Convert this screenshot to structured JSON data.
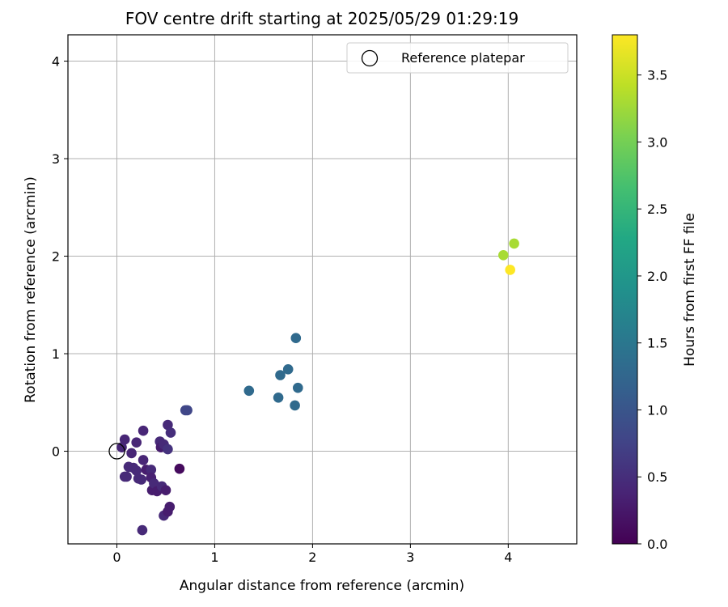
{
  "chart_data": {
    "type": "scatter",
    "title": "FOV centre drift starting at 2025/05/29 01:29:19",
    "xlabel": "Angular distance from reference (arcmin)",
    "ylabel": "Rotation from reference (arcmin)",
    "xlim": [
      -0.5,
      4.7
    ],
    "ylim": [
      -0.95,
      4.27
    ],
    "xticks": [
      0,
      1,
      2,
      3,
      4
    ],
    "yticks": [
      0,
      1,
      2,
      3,
      4
    ],
    "grid": true,
    "legend": {
      "placement": "top-right",
      "entries": [
        "Reference platepar"
      ]
    },
    "reference_point": {
      "x": 0,
      "y": 0,
      "label": "Reference platepar"
    },
    "colorbar": {
      "label": "Hours from first FF file",
      "colormap": "viridis",
      "range": [
        0.0,
        3.8
      ],
      "ticks": [
        0.0,
        0.5,
        1.0,
        1.5,
        2.0,
        2.5,
        3.0,
        3.5
      ]
    },
    "series": [
      {
        "points": [
          {
            "x": 0.05,
            "y": 0.04,
            "c": 0.4
          },
          {
            "x": 0.08,
            "y": 0.12,
            "c": 0.4
          },
          {
            "x": 0.15,
            "y": -0.02,
            "c": 0.4
          },
          {
            "x": 0.2,
            "y": 0.09,
            "c": 0.4
          },
          {
            "x": 0.27,
            "y": 0.21,
            "c": 0.4
          },
          {
            "x": 0.27,
            "y": -0.09,
            "c": 0.4
          },
          {
            "x": 0.08,
            "y": -0.26,
            "c": 0.45
          },
          {
            "x": 0.1,
            "y": -0.26,
            "c": 0.45
          },
          {
            "x": 0.12,
            "y": -0.16,
            "c": 0.45
          },
          {
            "x": 0.17,
            "y": -0.17,
            "c": 0.45
          },
          {
            "x": 0.2,
            "y": -0.2,
            "c": 0.45
          },
          {
            "x": 0.22,
            "y": -0.28,
            "c": 0.45
          },
          {
            "x": 0.25,
            "y": -0.29,
            "c": 0.45
          },
          {
            "x": 0.3,
            "y": -0.19,
            "c": 0.3
          },
          {
            "x": 0.35,
            "y": -0.19,
            "c": 0.45
          },
          {
            "x": 0.35,
            "y": -0.27,
            "c": 0.35
          },
          {
            "x": 0.36,
            "y": -0.4,
            "c": 0.3
          },
          {
            "x": 0.38,
            "y": -0.33,
            "c": 0.45
          },
          {
            "x": 0.41,
            "y": -0.41,
            "c": 0.3
          },
          {
            "x": 0.44,
            "y": 0.1,
            "c": 0.45
          },
          {
            "x": 0.45,
            "y": 0.04,
            "c": 0.3
          },
          {
            "x": 0.46,
            "y": -0.36,
            "c": 0.45
          },
          {
            "x": 0.48,
            "y": 0.07,
            "c": 0.45
          },
          {
            "x": 0.48,
            "y": -0.66,
            "c": 0.45
          },
          {
            "x": 0.5,
            "y": -0.4,
            "c": 0.3
          },
          {
            "x": 0.52,
            "y": 0.27,
            "c": 0.45
          },
          {
            "x": 0.52,
            "y": 0.02,
            "c": 0.55
          },
          {
            "x": 0.52,
            "y": -0.62,
            "c": 0.3
          },
          {
            "x": 0.54,
            "y": -0.57,
            "c": 0.3
          },
          {
            "x": 0.55,
            "y": 0.19,
            "c": 0.5
          },
          {
            "x": 0.64,
            "y": -0.18,
            "c": 0.1
          },
          {
            "x": 0.26,
            "y": -0.81,
            "c": 0.45
          },
          {
            "x": 0.7,
            "y": 0.42,
            "c": 0.8
          },
          {
            "x": 0.72,
            "y": 0.42,
            "c": 0.8
          },
          {
            "x": 1.35,
            "y": 0.62,
            "c": 1.3
          },
          {
            "x": 1.65,
            "y": 0.55,
            "c": 1.3
          },
          {
            "x": 1.67,
            "y": 0.78,
            "c": 1.3
          },
          {
            "x": 1.75,
            "y": 0.84,
            "c": 1.3
          },
          {
            "x": 1.82,
            "y": 0.47,
            "c": 1.3
          },
          {
            "x": 1.83,
            "y": 1.16,
            "c": 1.3
          },
          {
            "x": 1.85,
            "y": 0.65,
            "c": 1.3
          },
          {
            "x": 3.95,
            "y": 2.01,
            "c": 3.3
          },
          {
            "x": 4.02,
            "y": 1.86,
            "c": 3.8
          },
          {
            "x": 4.06,
            "y": 2.13,
            "c": 3.3
          }
        ]
      }
    ]
  }
}
